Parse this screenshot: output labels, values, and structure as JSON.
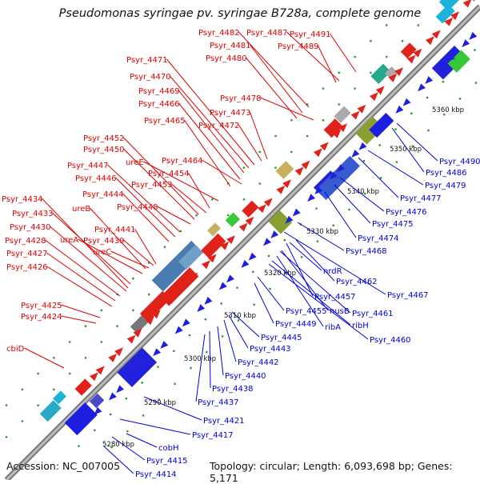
{
  "title": "Pseudomonas syringae pv. syringae B728a, complete genome",
  "footer": {
    "accession": "Accession: NC_007005",
    "stats": "Topology: circular; Length: 6,093,698 bp; Genes: 5,171"
  },
  "colors": {
    "forward_label": "#e00000",
    "reverse_label": "#0000dd",
    "backbone": "#999999",
    "tick": "#2e9a2e"
  },
  "scale": [
    "5280 kbp",
    "5290 kbp",
    "5300 kbp",
    "5310 kbp",
    "5320 kbp",
    "5330 kbp",
    "5340 kbp",
    "5350 kbp",
    "5360 kbp"
  ],
  "forward_labels": [
    "Psyr_4482",
    "Psyr_4487",
    "Psyr_4491",
    "Psyr_4481",
    "Psyr_4489",
    "Psyr_4480",
    "Psyr_4471",
    "Psyr_4470",
    "Psyr_4469",
    "Psyr_4466",
    "Psyr_4478",
    "Psyr_4473",
    "Psyr_4465",
    "Psyr_4472",
    "Psyr_4452",
    "Psyr_4450",
    "ureE",
    "Psyr_4447",
    "Psyr_4464",
    "Psyr_4454",
    "Psyr_4446",
    "Psyr_4453",
    "Psyr_4444",
    "Psyr_4448",
    "Psyr_4434",
    "Psyr_4433",
    "ureB",
    "Psyr_4441",
    "Psyr_4430",
    "ureA",
    "Psyr_4439",
    "Psyr_4428",
    "ureC",
    "Psyr_4427",
    "Psyr_4426",
    "Psyr_4425",
    "Psyr_4424",
    "cbiD"
  ],
  "reverse_labels": [
    "Psyr_4490",
    "Psyr_4486",
    "Psyr_4479",
    "Psyr_4477",
    "Psyr_4476",
    "Psyr_4475",
    "Psyr_4474",
    "Psyr_4468",
    "nrdR",
    "Psyr_4462",
    "Psyr_4467",
    "Psyr_4457",
    "Psyr_4455",
    "nusB",
    "Psyr_4461",
    "Psyr_4449",
    "ribA",
    "ribH",
    "Psyr_4445",
    "Psyr_4460",
    "Psyr_4443",
    "Psyr_4442",
    "Psyr_4440",
    "Psyr_4438",
    "Psyr_4437",
    "Psyr_4421",
    "Psyr_4417",
    "cobH",
    "Psyr_4415",
    "Psyr_4414"
  ]
}
